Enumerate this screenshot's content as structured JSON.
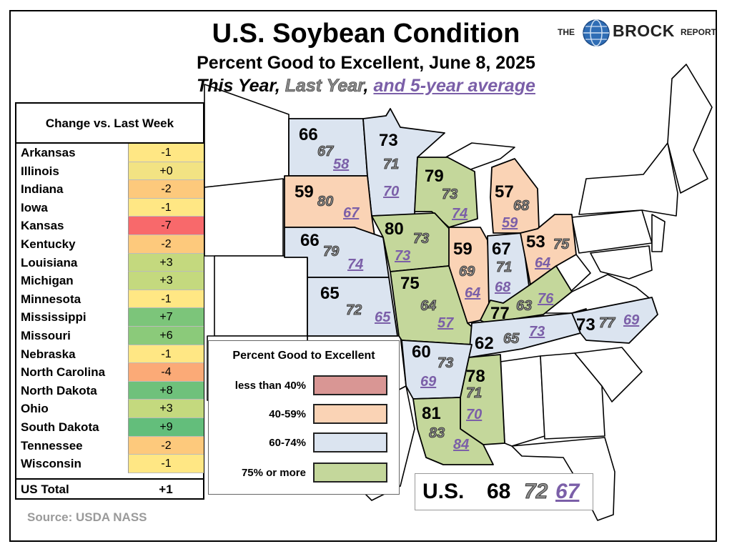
{
  "title": "U.S. Soybean Condition",
  "subtitle": "Percent Good to Excellent, June 8, 2025",
  "subtitle_parts": {
    "this_year": "This Year",
    "sep1": ", ",
    "last_year": "Last Year",
    "sep2": ", ",
    "avg": "and 5-year average"
  },
  "logo": {
    "the": "THE",
    "brock": "BROCK",
    "report": "REPORT"
  },
  "colors": {
    "less_than_40": "#d99694",
    "range_40_59": "#fad3b5",
    "range_60_74": "#dbe4f0",
    "above_75": "#c4d79b",
    "avg_text": "#7b5fa8",
    "chg_red": "#f8696b",
    "chg_orange": "#fbaa77",
    "chg_lightorange": "#fdc97c",
    "chg_yellow": "#ffe784",
    "chg_lightgreen": "#c4d97e",
    "chg_green": "#86c87a",
    "chg_darkgreen": "#63be7b"
  },
  "change_table": {
    "header": "Change vs. Last Week",
    "rows": [
      {
        "state": "Arkansas",
        "change": "-1",
        "color": "#ffe784"
      },
      {
        "state": "Illinois",
        "change": "+0",
        "color": "#f2e383"
      },
      {
        "state": "Indiana",
        "change": "-2",
        "color": "#fdc97c"
      },
      {
        "state": "Iowa",
        "change": "-1",
        "color": "#ffe784"
      },
      {
        "state": "Kansas",
        "change": "-7",
        "color": "#f8696b"
      },
      {
        "state": "Kentucky",
        "change": "-2",
        "color": "#fdc97c"
      },
      {
        "state": "Louisiana",
        "change": "+3",
        "color": "#c4d97e"
      },
      {
        "state": "Michigan",
        "change": "+3",
        "color": "#c4d97e"
      },
      {
        "state": "Minnesota",
        "change": "-1",
        "color": "#ffe784"
      },
      {
        "state": "Mississippi",
        "change": "+7",
        "color": "#7cc57a"
      },
      {
        "state": "Missouri",
        "change": "+6",
        "color": "#8bca7a"
      },
      {
        "state": "Nebraska",
        "change": "-1",
        "color": "#ffe784"
      },
      {
        "state": "North Carolina",
        "change": "-4",
        "color": "#fbaa77"
      },
      {
        "state": "North Dakota",
        "change": "+8",
        "color": "#6fc17b"
      },
      {
        "state": "Ohio",
        "change": "+3",
        "color": "#c4d97e"
      },
      {
        "state": "South Dakota",
        "change": "+9",
        "color": "#63be7b"
      },
      {
        "state": "Tennessee",
        "change": "-2",
        "color": "#fdc97c"
      },
      {
        "state": "Wisconsin",
        "change": "-1",
        "color": "#ffe784"
      }
    ],
    "total_label": "US Total",
    "total_change": "+1"
  },
  "legend": {
    "title": "Percent Good to Excellent",
    "items": [
      {
        "label": "less than 40%",
        "color": "#d99694"
      },
      {
        "label": "40-59%",
        "color": "#fad3b5"
      },
      {
        "label": "60-74%",
        "color": "#dbe4f0"
      },
      {
        "label": "75% or more",
        "color": "#c4d79b"
      }
    ]
  },
  "states": [
    {
      "name": "North Dakota",
      "this_year": "66",
      "last_year": "67",
      "avg": "58",
      "color": "#dbe4f0"
    },
    {
      "name": "Minnesota",
      "this_year": "73",
      "last_year": "71",
      "avg": "70",
      "color": "#dbe4f0"
    },
    {
      "name": "South Dakota",
      "this_year": "59",
      "last_year": "80",
      "avg": "67",
      "color": "#fad3b5"
    },
    {
      "name": "Wisconsin",
      "this_year": "79",
      "last_year": "73",
      "avg": "74",
      "color": "#c4d79b"
    },
    {
      "name": "Michigan",
      "this_year": "57",
      "last_year": "68",
      "avg": "59",
      "color": "#fad3b5"
    },
    {
      "name": "Nebraska",
      "this_year": "66",
      "last_year": "79",
      "avg": "74",
      "color": "#dbe4f0"
    },
    {
      "name": "Iowa",
      "this_year": "80",
      "last_year": "73",
      "avg": "73",
      "color": "#c4d79b"
    },
    {
      "name": "Illinois",
      "this_year": "59",
      "last_year": "69",
      "avg": "64",
      "color": "#fad3b5"
    },
    {
      "name": "Indiana",
      "this_year": "67",
      "last_year": "71",
      "avg": "68",
      "color": "#dbe4f0"
    },
    {
      "name": "Ohio",
      "this_year": "53",
      "last_year": "75",
      "avg": "64",
      "color": "#fad3b5"
    },
    {
      "name": "Kansas",
      "this_year": "65",
      "last_year": "72",
      "avg": "65",
      "color": "#dbe4f0"
    },
    {
      "name": "Missouri",
      "this_year": "75",
      "last_year": "64",
      "avg": "57",
      "color": "#c4d79b"
    },
    {
      "name": "Kentucky",
      "this_year": "77",
      "last_year": "63",
      "avg": "76",
      "color": "#c4d79b"
    },
    {
      "name": "Tennessee",
      "this_year": "62",
      "last_year": "65",
      "avg": "73",
      "color": "#dbe4f0"
    },
    {
      "name": "North Carolina",
      "this_year": "73",
      "last_year": "77",
      "avg": "69",
      "color": "#dbe4f0"
    },
    {
      "name": "Arkansas",
      "this_year": "60",
      "last_year": "73",
      "avg": "69",
      "color": "#dbe4f0"
    },
    {
      "name": "Mississippi",
      "this_year": "78",
      "last_year": "71",
      "avg": "70",
      "color": "#c4d79b"
    },
    {
      "name": "Louisiana",
      "this_year": "81",
      "last_year": "83",
      "avg": "84",
      "color": "#c4d79b"
    }
  ],
  "us_total": {
    "label": "U.S.",
    "this_year": "68",
    "last_year": "72",
    "avg": "67"
  },
  "source": "Source: USDA NASS"
}
